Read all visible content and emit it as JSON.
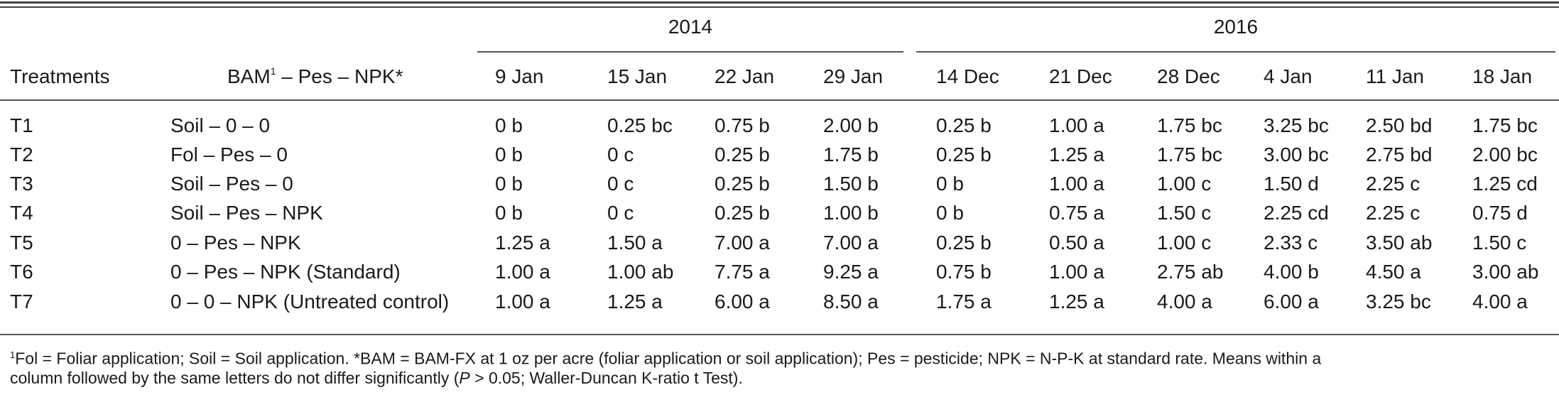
{
  "table": {
    "years": [
      "2014",
      "2016"
    ],
    "headers": {
      "treatments": "Treatments",
      "bam_prefix": "BAM",
      "bam_sup": "1",
      "bam_suffix": " – Pes – NPK*",
      "dates": [
        "9 Jan",
        "15 Jan",
        "22 Jan",
        "29 Jan",
        "14 Dec",
        "21 Dec",
        "28 Dec",
        "4 Jan",
        "11 Jan",
        "18 Jan"
      ]
    },
    "rows": [
      {
        "t": "T1",
        "desc": "Soil – 0 – 0",
        "values": [
          "0 b",
          "0.25 bc",
          "0.75 b",
          "2.00 b",
          "0.25 b",
          "1.00 a",
          "1.75 bc",
          "3.25 bc",
          "2.50 bd",
          "1.75 bc"
        ]
      },
      {
        "t": "T2",
        "desc": "Fol – Pes – 0",
        "values": [
          "0 b",
          "0 c",
          "0.25 b",
          "1.75 b",
          "0.25 b",
          "1.25 a",
          "1.75 bc",
          "3.00 bc",
          "2.75 bd",
          "2.00 bc"
        ]
      },
      {
        "t": "T3",
        "desc": "Soil – Pes – 0",
        "values": [
          "0 b",
          "0 c",
          "0.25 b",
          "1.50 b",
          "0 b",
          "1.00 a",
          "1.00 c",
          "1.50 d",
          "2.25 c",
          "1.25 cd"
        ]
      },
      {
        "t": "T4",
        "desc": "Soil – Pes – NPK",
        "values": [
          "0 b",
          "0 c",
          "0.25 b",
          "1.00 b",
          "0 b",
          "0.75 a",
          "1.50 c",
          "2.25 cd",
          "2.25 c",
          "0.75 d"
        ]
      },
      {
        "t": "T5",
        "desc": "0 – Pes – NPK",
        "values": [
          "1.25 a",
          "1.50 a",
          "7.00 a",
          "7.00 a",
          "0.25 b",
          "0.50 a",
          "1.00 c",
          "2.33 c",
          "3.50 ab",
          "1.50 c"
        ]
      },
      {
        "t": "T6",
        "desc": "0 – Pes – NPK (Standard)",
        "values": [
          "1.00 a",
          "1.00 ab",
          "7.75 a",
          "9.25 a",
          "0.75 b",
          "1.00 a",
          "2.75 ab",
          "4.00 b",
          "4.50 a",
          "3.00 ab"
        ]
      },
      {
        "t": "T7",
        "desc": "0 – 0 – NPK (Untreated control)",
        "values": [
          "1.00 a",
          "1.25 a",
          "6.00 a",
          "8.50 a",
          "1.75 a",
          "1.25 a",
          "4.00 a",
          "6.00 a",
          "3.25 bc",
          "4.00 a"
        ]
      }
    ]
  },
  "footnote": {
    "sup": "1",
    "line1": "Fol = Foliar application; Soil = Soil application. *BAM = BAM-FX at 1 oz per acre (foliar application or soil application); Pes = pesticide; NPK = N-P-K at standard rate. Means within a",
    "line2_a": "column followed by the same letters do not differ significantly (",
    "line2_p": "P",
    "line2_b": " > 0.05; Waller-Duncan K-ratio t Test)."
  }
}
